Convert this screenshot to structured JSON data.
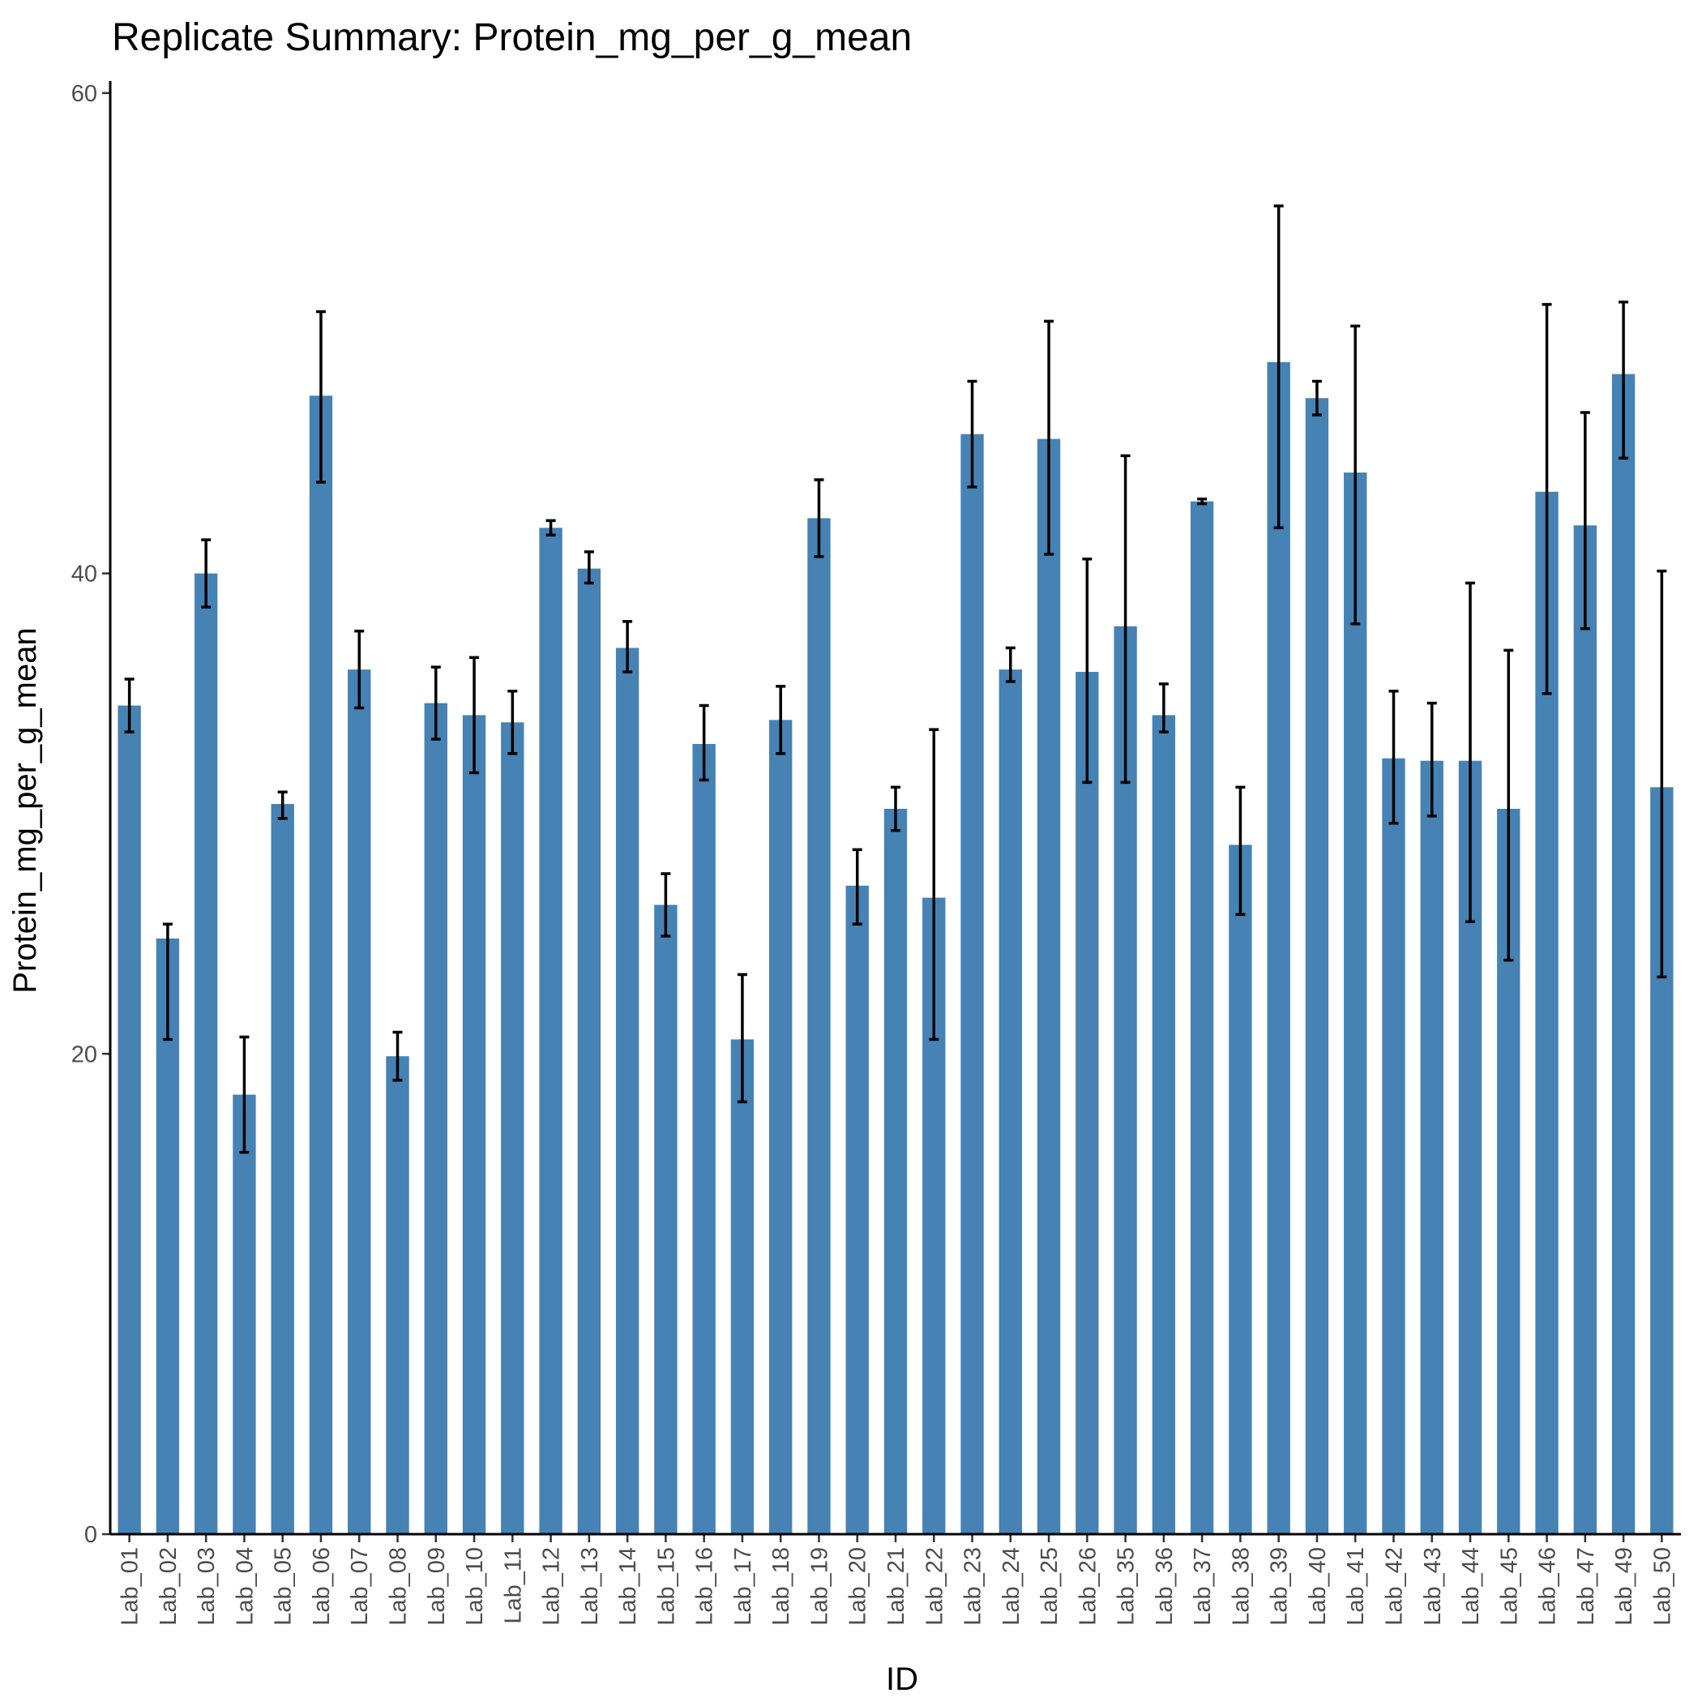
{
  "chart_data": {
    "type": "bar",
    "title": "Replicate Summary: Protein_mg_per_g_mean",
    "xlabel": "ID",
    "ylabel": "Protein_mg_per_g_mean",
    "ylim": [
      0,
      60.5
    ],
    "yticks": [
      0,
      20,
      40,
      60
    ],
    "grid": false,
    "bar_color": "#4682B4",
    "errorbar_color": "#000000",
    "categories": [
      "Lab_01",
      "Lab_02",
      "Lab_03",
      "Lab_04",
      "Lab_05",
      "Lab_06",
      "Lab_07",
      "Lab_08",
      "Lab_09",
      "Lab_10",
      "Lab_11",
      "Lab_12",
      "Lab_13",
      "Lab_14",
      "Lab_15",
      "Lab_16",
      "Lab_17",
      "Lab_18",
      "Lab_19",
      "Lab_20",
      "Lab_21",
      "Lab_22",
      "Lab_23",
      "Lab_24",
      "Lab_25",
      "Lab_26",
      "Lab_35",
      "Lab_36",
      "Lab_37",
      "Lab_38",
      "Lab_39",
      "Lab_40",
      "Lab_41",
      "Lab_42",
      "Lab_43",
      "Lab_44",
      "Lab_45",
      "Lab_46",
      "Lab_47",
      "Lab_49",
      "Lab_50"
    ],
    "values": [
      34.5,
      24.8,
      40.0,
      18.3,
      30.4,
      47.4,
      36.0,
      19.9,
      34.6,
      34.1,
      33.8,
      41.9,
      40.2,
      36.9,
      26.2,
      32.9,
      20.6,
      33.9,
      42.3,
      27.0,
      30.2,
      26.5,
      45.8,
      36.0,
      45.6,
      35.9,
      37.8,
      34.1,
      43.0,
      28.7,
      48.8,
      47.3,
      44.2,
      32.3,
      32.2,
      32.2,
      30.2,
      43.4,
      42.0,
      48.3,
      31.1
    ],
    "error_low": [
      33.4,
      20.6,
      38.6,
      15.9,
      29.8,
      43.8,
      34.4,
      18.9,
      33.1,
      31.7,
      32.5,
      41.6,
      39.6,
      35.9,
      24.9,
      31.4,
      18.0,
      32.5,
      40.7,
      25.4,
      29.3,
      20.6,
      43.6,
      35.5,
      40.8,
      31.3,
      31.3,
      33.4,
      42.9,
      25.8,
      41.9,
      46.6,
      37.9,
      29.6,
      29.9,
      25.5,
      23.9,
      35.0,
      37.7,
      44.8,
      23.2
    ],
    "error_high": [
      35.6,
      25.4,
      41.4,
      20.7,
      30.9,
      50.9,
      37.6,
      20.9,
      36.1,
      36.5,
      35.1,
      42.2,
      40.9,
      38.0,
      27.5,
      34.5,
      23.3,
      35.3,
      43.9,
      28.5,
      31.1,
      33.5,
      48.0,
      36.9,
      50.5,
      40.6,
      44.9,
      35.4,
      43.1,
      31.1,
      55.3,
      48.0,
      50.3,
      35.1,
      34.6,
      39.6,
      36.8,
      51.2,
      46.7,
      51.3,
      40.1
    ]
  }
}
